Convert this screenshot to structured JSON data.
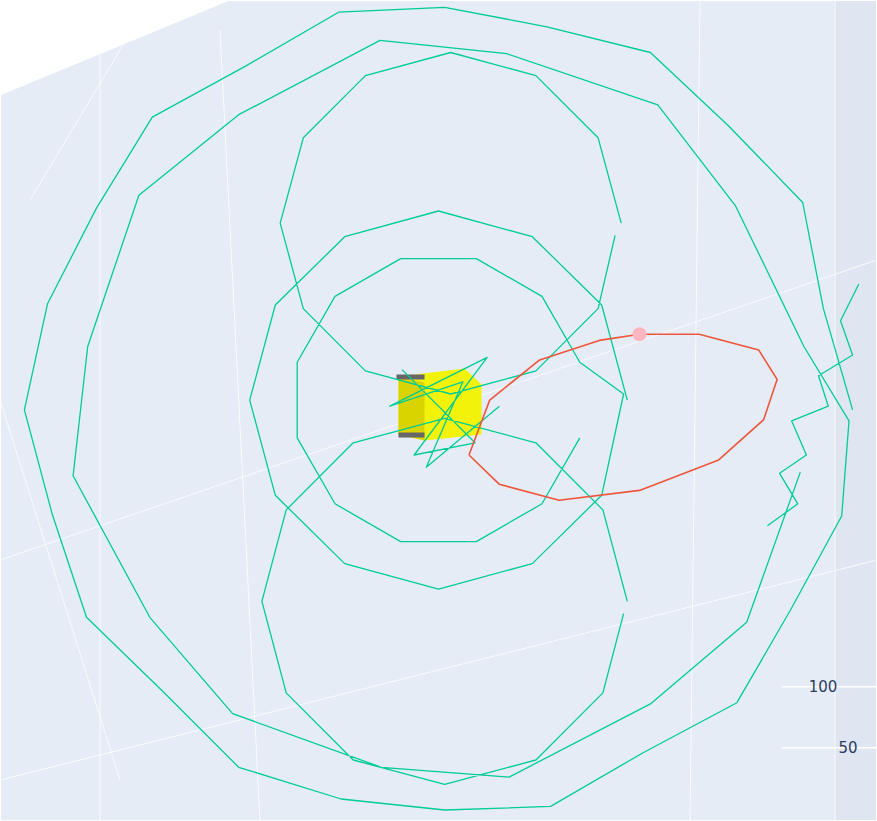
{
  "chart_data": {
    "type": "line",
    "tick_labels": "y",
    "grid": true,
    "xlim": [
      0,
      720
    ],
    "ylim": [
      -10,
      663
    ],
    "yticks": [
      50,
      100
    ],
    "series": [
      {
        "type": "line",
        "color": "#00cc96",
        "x": [
          700,
          676,
          659,
          598,
          534,
          449,
          365,
          278,
          202,
          125,
          79,
          39,
          20,
          43,
          71,
          134,
          196,
          280,
          365,
          452,
          528,
          605,
          649,
          691,
          697,
          660,
          604,
          540,
          416,
          312,
          196,
          114,
          72,
          60,
          123,
          191,
          313,
          418,
          534,
          613,
          657,
          null,
          705,
          690,
          700,
          672,
          680,
          650,
          662,
          640,
          655,
          630,
          null,
          515,
          494,
          437,
          360,
          283,
          226,
          205,
          226,
          283,
          360,
          437,
          494,
          512,
          476,
          445,
          391,
          329,
          275,
          244,
          244,
          275,
          329,
          391,
          445,
          476,
          null,
          510,
          491,
          440,
          370,
          300,
          249,
          230,
          249,
          300,
          370,
          440,
          491,
          505,
          null,
          515,
          495,
          440,
          365,
          290,
          235,
          215,
          235,
          290,
          365,
          440,
          495,
          512,
          null,
          330,
          390,
          340,
          400,
          320,
          380,
          350,
          410
        ],
        "values": [
          327,
          410,
          497,
          560,
          620,
          641,
          657,
          653,
          609,
          567,
          492,
          414,
          327,
          241,
          157,
          96,
          34,
          8,
          -1,
          2,
          46,
          87,
          163,
          240,
          318,
          379,
          494,
          577,
          619,
          630,
          569,
          503,
          379,
          273,
          157,
          78,
          34,
          26,
          86,
          153,
          276,
          null,
          430,
          400,
          372,
          355,
          330,
          318,
          290,
          275,
          250,
          232,
          null,
          335,
          413,
          469,
          490,
          469,
          413,
          335,
          257,
          201,
          180,
          201,
          257,
          340,
          366,
          420,
          451,
          451,
          420,
          366,
          304,
          250,
          219,
          219,
          250,
          304,
          null,
          480,
          550,
          601,
          620,
          601,
          550,
          480,
          410,
          359,
          340,
          359,
          410,
          470,
          null,
          170,
          245,
          300,
          320,
          300,
          245,
          170,
          95,
          40,
          20,
          40,
          95,
          160,
          null,
          360,
          300,
          290,
          370,
          330,
          350,
          280,
          330
        ]
      },
      {
        "type": "line",
        "color": "#ef553b",
        "x": [
          385,
          402,
          443,
          492,
          525,
          574,
          623,
          638,
          627,
          590,
          525,
          459,
          410,
          385
        ],
        "values": [
          290,
          335,
          368,
          384,
          389,
          389,
          376,
          352,
          319,
          286,
          261,
          253,
          266,
          290
        ]
      },
      {
        "type": "scatter",
        "color": "#ffb6c1",
        "marker": "circle",
        "x": [
          525
        ],
        "values": [
          389
        ]
      }
    ]
  }
}
